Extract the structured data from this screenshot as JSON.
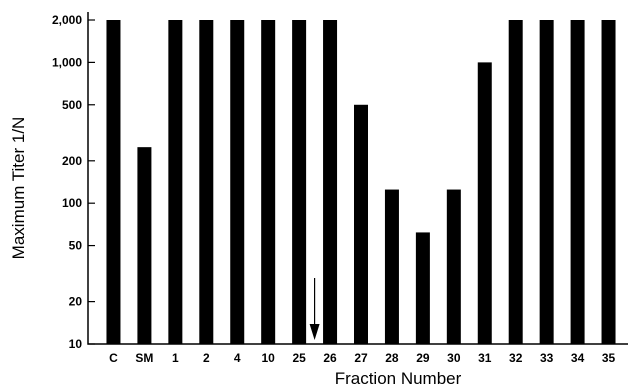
{
  "chart_data": {
    "type": "bar",
    "title": "",
    "xlabel": "Fraction Number",
    "ylabel": "Maximum Titer 1/N",
    "y_scale": "log",
    "ylim": [
      10,
      2000
    ],
    "yticks": [
      10,
      20,
      50,
      100,
      200,
      500,
      1000,
      2000
    ],
    "ytick_labels": [
      "10",
      "20",
      "50",
      "100",
      "200",
      "500",
      "1,000",
      "2,000"
    ],
    "categories": [
      "C",
      "SM",
      "1",
      "2",
      "4",
      "10",
      "25",
      "26",
      "27",
      "28",
      "29",
      "30",
      "31",
      "32",
      "33",
      "34",
      "35"
    ],
    "values": [
      2000,
      250,
      2000,
      2000,
      2000,
      2000,
      2000,
      2000,
      500,
      125,
      62,
      125,
      1000,
      2000,
      2000,
      2000,
      2000
    ],
    "annotations": [
      {
        "type": "arrow",
        "between": [
          "25",
          "26"
        ],
        "direction": "down"
      }
    ],
    "grid": false,
    "bar_color": "#000000"
  }
}
